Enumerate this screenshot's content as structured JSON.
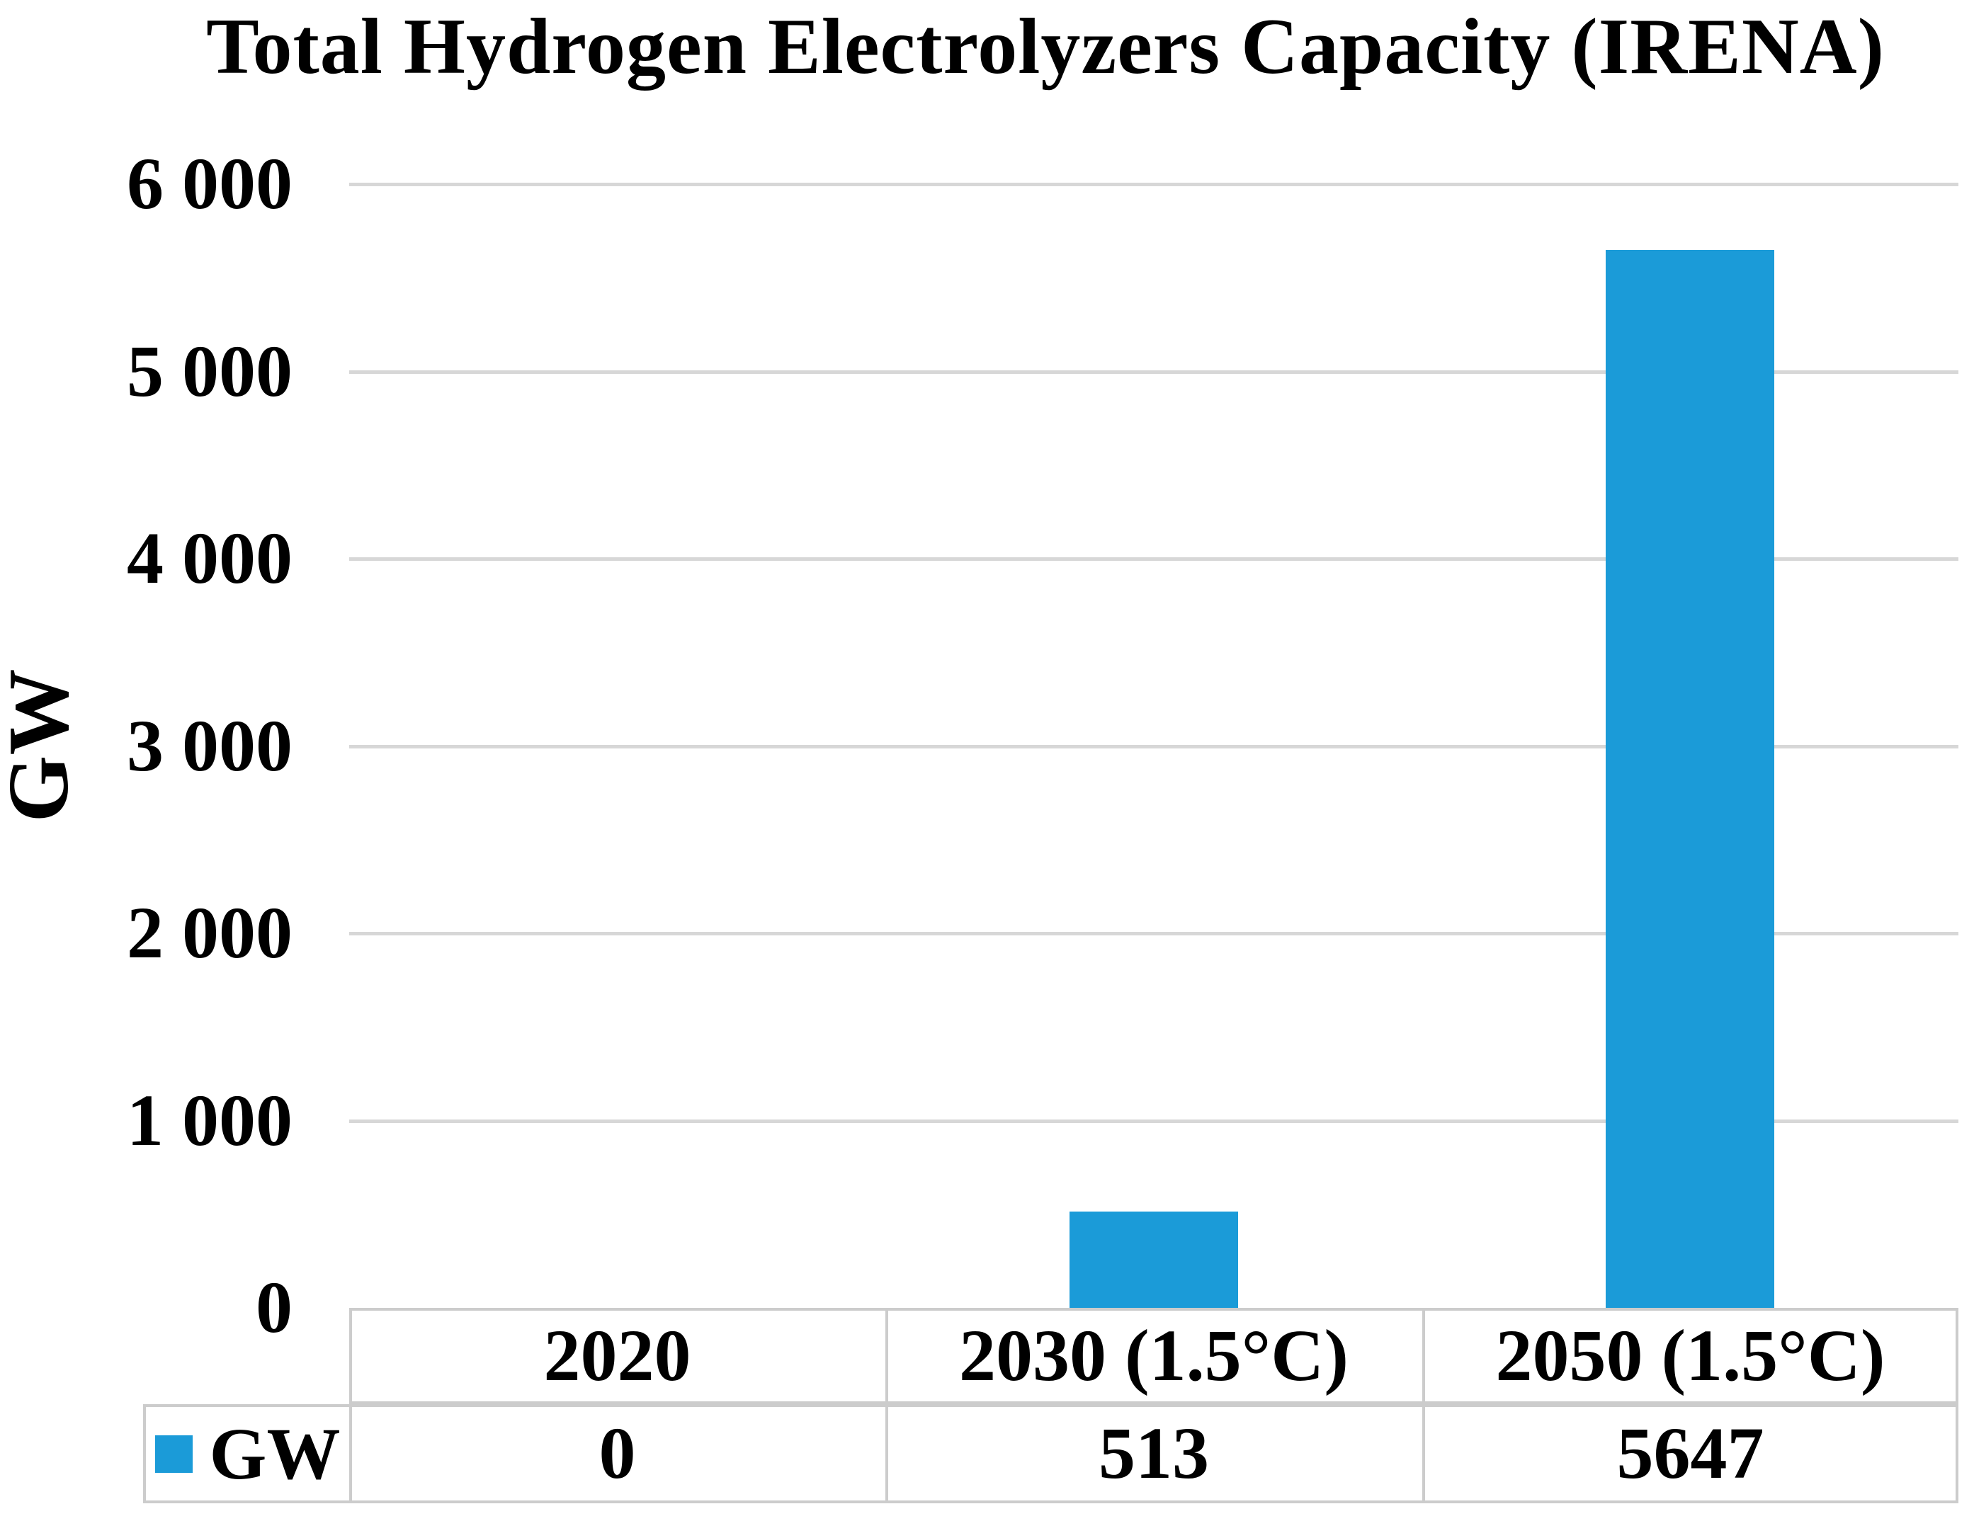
{
  "title": "Total Hydrogen Electrolyzers Capacity (IRENA)",
  "y_axis": {
    "label": "GW",
    "tick_labels": [
      "0",
      "1 000",
      "2 000",
      "3 000",
      "4 000",
      "5 000",
      "6 000"
    ],
    "tick_values": [
      0,
      1000,
      2000,
      3000,
      4000,
      5000,
      6000
    ],
    "max": 6000
  },
  "legend": {
    "series_label": "GW"
  },
  "table": {
    "header_cells": [
      "2020",
      "2030 (1.5°C)",
      "2050 (1.5°C)"
    ],
    "legend_cell_label": "GW",
    "value_cells": [
      "0",
      "513",
      "5647"
    ]
  },
  "colors": {
    "bar": "#1B9BD8",
    "gridline": "#D7D7D7",
    "table_border": "#CCCCCC",
    "text": "#000000",
    "background": "#FFFFFF"
  },
  "chart_data": {
    "type": "bar",
    "title": "Total Hydrogen Electrolyzers Capacity (IRENA)",
    "categories": [
      "2020",
      "2030 (1.5°C)",
      "2050 (1.5°C)"
    ],
    "series": [
      {
        "name": "GW",
        "values": [
          0,
          513,
          5647
        ]
      }
    ],
    "xlabel": "",
    "ylabel": "GW",
    "ylim": [
      0,
      6000
    ],
    "ytick_interval": 1000,
    "grid": "horizontal-gridlines",
    "legend_position": "bottom-left-data-table",
    "data_table_shown": true
  }
}
